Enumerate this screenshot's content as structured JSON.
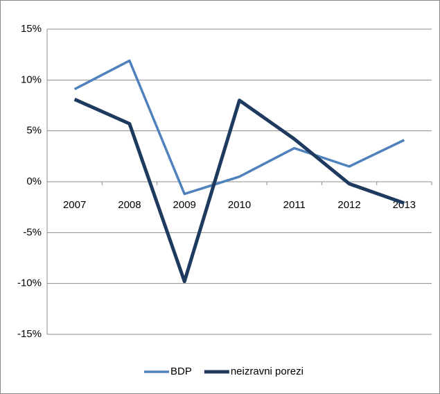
{
  "chart_data": {
    "type": "line",
    "categories": [
      "2007",
      "2008",
      "2009",
      "2010",
      "2011",
      "2012",
      "2013"
    ],
    "series": [
      {
        "name": "BDP",
        "color": "#4f81bd",
        "values": [
          9.1,
          11.9,
          -1.2,
          0.5,
          3.3,
          1.5,
          4.1
        ]
      },
      {
        "name": "neizravni porezi",
        "color": "#1f3a5f",
        "values": [
          8.1,
          5.7,
          -9.8,
          8.0,
          4.2,
          -0.2,
          -2.1
        ]
      }
    ],
    "ylim": [
      -15,
      15
    ],
    "yticks": [
      {
        "value": -15,
        "label": "-15%"
      },
      {
        "value": -10,
        "label": "-10%"
      },
      {
        "value": -5,
        "label": "-5%"
      },
      {
        "value": 0,
        "label": "0%"
      },
      {
        "value": 5,
        "label": "5%"
      },
      {
        "value": 10,
        "label": "10%"
      },
      {
        "value": 15,
        "label": "15%"
      }
    ],
    "grid": true,
    "legend": "bottom"
  }
}
